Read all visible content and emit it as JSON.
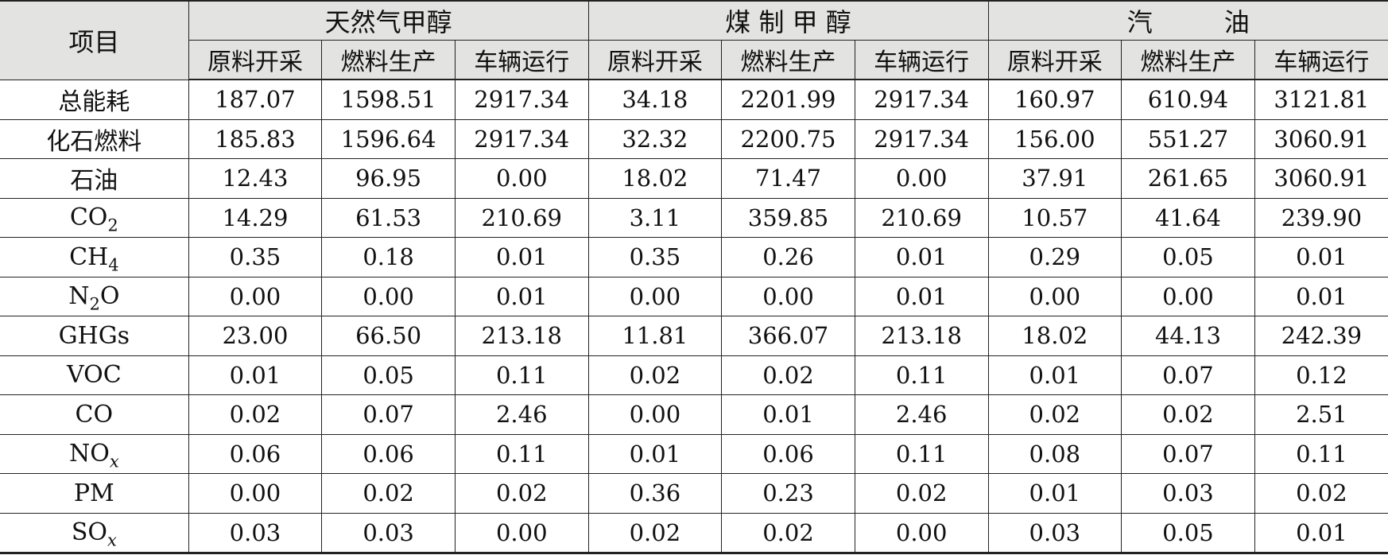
{
  "table": {
    "item_header": "项目",
    "groups": [
      {
        "label": "天然气甲醇"
      },
      {
        "label": "煤 制 甲 醇"
      },
      {
        "label_left": "汽",
        "label_right": "油"
      }
    ],
    "stages": [
      "原料开采",
      "燃料生产",
      "车辆运行",
      "原料开采",
      "燃料生产",
      "车辆运行",
      "原料开采",
      "燃料生产",
      "车辆运行"
    ],
    "rows": [
      {
        "label": "总能耗",
        "values": [
          "187.07",
          "1598.51",
          "2917.34",
          "34.18",
          "2201.99",
          "2917.34",
          "160.97",
          "610.94",
          "3121.81"
        ]
      },
      {
        "label": "化石燃料",
        "values": [
          "185.83",
          "1596.64",
          "2917.34",
          "32.32",
          "2200.75",
          "2917.34",
          "156.00",
          "551.27",
          "3060.91"
        ]
      },
      {
        "label": "石油",
        "values": [
          "12.43",
          "96.95",
          "0.00",
          "18.02",
          "71.47",
          "0.00",
          "37.91",
          "261.65",
          "3060.91"
        ]
      },
      {
        "label_main": "CO",
        "label_sub": "2",
        "values": [
          "14.29",
          "61.53",
          "210.69",
          "3.11",
          "359.85",
          "210.69",
          "10.57",
          "41.64",
          "239.90"
        ]
      },
      {
        "label_main": "CH",
        "label_sub": "4",
        "values": [
          "0.35",
          "0.18",
          "0.01",
          "0.35",
          "0.26",
          "0.01",
          "0.29",
          "0.05",
          "0.01"
        ]
      },
      {
        "label_main": "N",
        "label_sub": "2",
        "label_after": "O",
        "values": [
          "0.00",
          "0.00",
          "0.01",
          "0.00",
          "0.00",
          "0.01",
          "0.00",
          "0.00",
          "0.01"
        ]
      },
      {
        "label": "GHGs",
        "values": [
          "23.00",
          "66.50",
          "213.18",
          "11.81",
          "366.07",
          "213.18",
          "18.02",
          "44.13",
          "242.39"
        ]
      },
      {
        "label": "VOC",
        "values": [
          "0.01",
          "0.05",
          "0.11",
          "0.02",
          "0.02",
          "0.11",
          "0.01",
          "0.07",
          "0.12"
        ]
      },
      {
        "label": "CO",
        "values": [
          "0.02",
          "0.07",
          "2.46",
          "0.00",
          "0.01",
          "2.46",
          "0.02",
          "0.02",
          "2.51"
        ]
      },
      {
        "label_main": "NO",
        "label_sub": "x",
        "values": [
          "0.06",
          "0.06",
          "0.11",
          "0.01",
          "0.06",
          "0.11",
          "0.08",
          "0.07",
          "0.11"
        ]
      },
      {
        "label": "PM",
        "values": [
          "0.00",
          "0.02",
          "0.02",
          "0.36",
          "0.23",
          "0.02",
          "0.01",
          "0.03",
          "0.02"
        ]
      },
      {
        "label_main": "SO",
        "label_sub": "x",
        "values": [
          "0.03",
          "0.03",
          "0.00",
          "0.02",
          "0.02",
          "0.00",
          "0.03",
          "0.05",
          "0.01"
        ]
      }
    ]
  }
}
